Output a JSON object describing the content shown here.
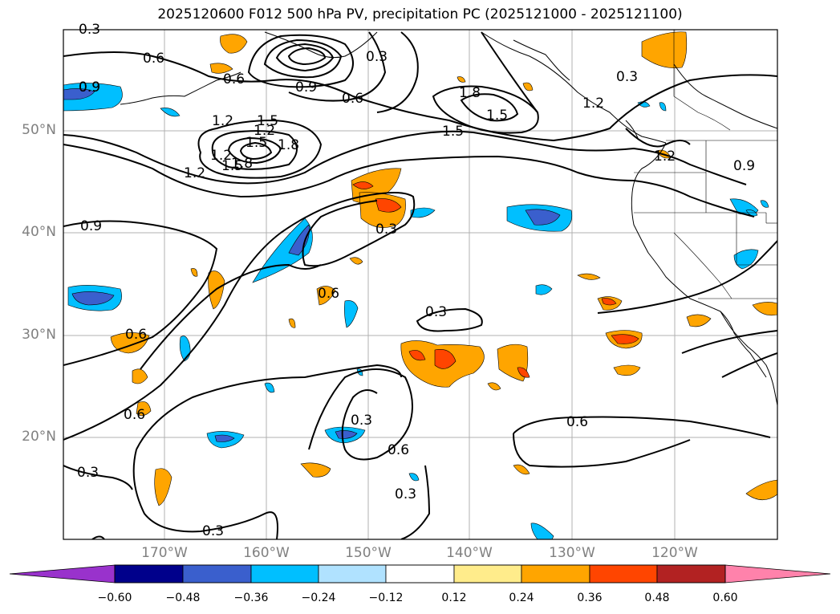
{
  "title": "2025120600 F012 500 hPa PV, precipitation PC (2025121000 - 2025121100)",
  "lat_labels": [
    "50°N",
    "40°N",
    "30°N",
    "20°N"
  ],
  "lon_labels": [
    "170°W",
    "160°W",
    "150°W",
    "140°W",
    "130°W",
    "120°W"
  ],
  "colorbar": {
    "ticks": [
      "−0.60",
      "−0.48",
      "−0.36",
      "−0.24",
      "−0.12",
      "0.12",
      "0.24",
      "0.36",
      "0.48",
      "0.60"
    ],
    "colors": [
      "#9932cc",
      "#00008b",
      "#3a5fcd",
      "#00bfff",
      "#b0e2ff",
      "#ffffff",
      "#ffec8b",
      "#ffa500",
      "#ff4500",
      "#b22222",
      "#ff82ab"
    ]
  },
  "contour_labels": [
    "0.3",
    "0.6",
    "0.9",
    "1.2",
    "1.5",
    "1.8",
    "1.2",
    "0.9",
    "0.6",
    "0.6",
    "0.3",
    "0.3",
    "0.6",
    "0.3",
    "0.3",
    "0.3",
    "0.6",
    "0.3",
    "0.6",
    "0.3",
    "1.2",
    "1.5",
    "1.8",
    "1.5",
    "1.2",
    "0.9",
    "0.9",
    "0.6",
    "0.3",
    "0.6",
    "1.2",
    "1.5",
    "1.8",
    "1.5",
    "1.2",
    "0.9"
  ],
  "colors": {
    "grid": "#b0b0b0",
    "axis_text": "#808080",
    "contour": "#000000"
  }
}
